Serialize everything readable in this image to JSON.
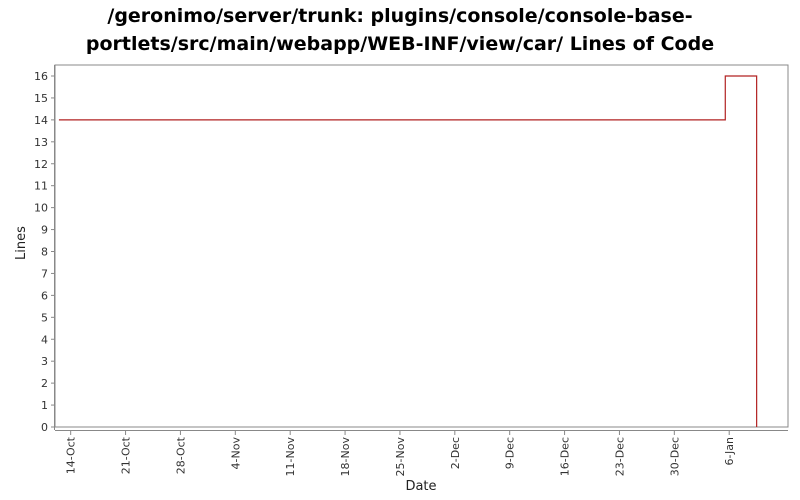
{
  "chart_data": {
    "type": "line",
    "title_line1": "/geronimo/server/trunk: plugins/console/console-base-",
    "title_line2": "portlets/src/main/webapp/WEB-INF/view/car/ Lines of Code",
    "xlabel": "Date",
    "ylabel": "Lines",
    "ylim": [
      0,
      16
    ],
    "yticks": [
      0,
      1,
      2,
      3,
      4,
      5,
      6,
      7,
      8,
      9,
      10,
      11,
      12,
      13,
      14,
      15,
      16
    ],
    "xlim": [
      -2.0,
      91.5
    ],
    "xticks": [
      {
        "label": "14-Oct",
        "day": 0
      },
      {
        "label": "21-Oct",
        "day": 7
      },
      {
        "label": "28-Oct",
        "day": 14
      },
      {
        "label": "4-Nov",
        "day": 21
      },
      {
        "label": "11-Nov",
        "day": 28
      },
      {
        "label": "18-Nov",
        "day": 35
      },
      {
        "label": "25-Nov",
        "day": 42
      },
      {
        "label": "2-Dec",
        "day": 49
      },
      {
        "label": "9-Dec",
        "day": 56
      },
      {
        "label": "16-Dec",
        "day": 63
      },
      {
        "label": "23-Dec",
        "day": 70
      },
      {
        "label": "30-Dec",
        "day": 77
      },
      {
        "label": "6-Jan",
        "day": 84
      }
    ],
    "grid": false,
    "series": [
      {
        "color": "#b22222",
        "step": true,
        "points": [
          {
            "day": -1.5,
            "value": 14
          },
          {
            "day": 83.5,
            "value": 16
          },
          {
            "day": 87.5,
            "value": 0
          }
        ]
      }
    ]
  }
}
